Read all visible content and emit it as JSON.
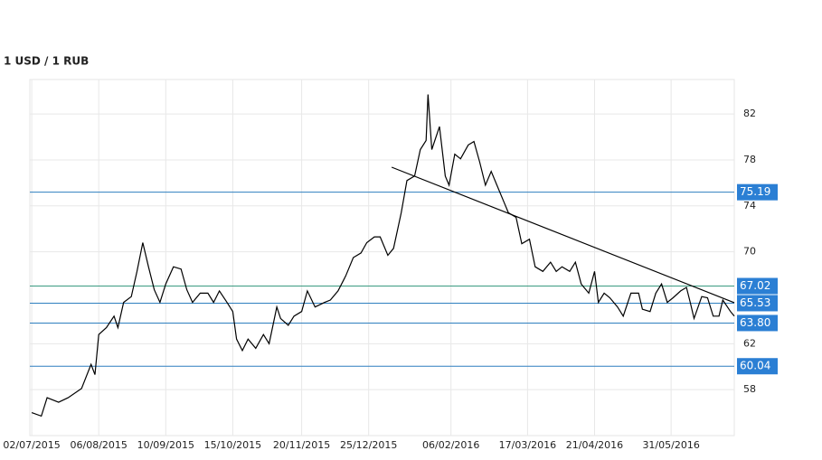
{
  "chart_data": {
    "type": "line",
    "title": "1 USD / 1 RUB",
    "x": [
      "02/07/2015",
      "07/07/2015",
      "10/07/2015",
      "16/07/2015",
      "21/07/2015",
      "28/07/2015",
      "02/08/2015",
      "04/08/2015",
      "06/08/2015",
      "10/08/2015",
      "14/08/2015",
      "16/08/2015",
      "19/08/2015",
      "23/08/2015",
      "26/08/2015",
      "29/08/2015",
      "01/09/2015",
      "04/09/2015",
      "07/09/2015",
      "10/09/2015",
      "14/09/2015",
      "18/09/2015",
      "21/09/2015",
      "24/09/2015",
      "28/09/2015",
      "02/10/2015",
      "05/10/2015",
      "08/10/2015",
      "12/10/2015",
      "15/10/2015",
      "17/10/2015",
      "20/10/2015",
      "23/10/2015",
      "27/10/2015",
      "31/10/2015",
      "03/11/2015",
      "07/11/2015",
      "09/11/2015",
      "13/11/2015",
      "16/11/2015",
      "20/11/2015",
      "23/11/2015",
      "27/11/2015",
      "02/12/2015",
      "05/12/2015",
      "09/12/2015",
      "13/12/2015",
      "17/12/2015",
      "21/12/2015",
      "24/12/2015",
      "28/12/2015",
      "31/12/2015",
      "04/01/2016",
      "07/01/2016",
      "11/01/2016",
      "14/01/2016",
      "18/01/2016",
      "21/01/2016",
      "24/01/2016",
      "25/01/2016",
      "27/01/2016",
      "31/01/2016",
      "03/02/2016",
      "05/02/2016",
      "08/02/2016",
      "11/02/2016",
      "15/02/2016",
      "18/02/2016",
      "21/02/2016",
      "24/02/2016",
      "27/02/2016",
      "01/03/2016",
      "05/03/2016",
      "07/03/2016",
      "11/03/2016",
      "14/03/2016",
      "18/03/2016",
      "21/03/2016",
      "25/03/2016",
      "29/03/2016",
      "01/04/2016",
      "04/04/2016",
      "08/04/2016",
      "11/04/2016",
      "14/04/2016",
      "18/04/2016",
      "21/04/2016",
      "23/04/2016",
      "26/04/2016",
      "29/04/2016",
      "03/05/2016",
      "06/05/2016",
      "10/05/2016",
      "14/05/2016",
      "16/05/2016",
      "20/05/2016",
      "23/05/2016",
      "26/05/2016",
      "29/05/2016",
      "01/06/2016",
      "05/06/2016",
      "08/06/2016",
      "10/06/2016",
      "12/06/2016",
      "16/06/2016",
      "19/06/2016",
      "22/06/2016",
      "25/06/2016",
      "27/06/2016",
      "01/07/2016",
      "03/07/2016"
    ],
    "values": [
      56.0,
      55.7,
      57.3,
      56.9,
      57.3,
      58.1,
      60.2,
      59.3,
      62.8,
      63.4,
      64.4,
      63.4,
      65.6,
      66.1,
      68.3,
      70.8,
      68.7,
      66.7,
      65.6,
      67.2,
      68.7,
      68.5,
      66.7,
      65.6,
      66.4,
      66.4,
      65.6,
      66.6,
      65.6,
      64.8,
      62.4,
      61.4,
      62.4,
      61.6,
      62.8,
      62.0,
      65.2,
      64.2,
      63.6,
      64.4,
      64.8,
      66.6,
      65.2,
      65.6,
      65.8,
      66.6,
      67.9,
      69.5,
      69.9,
      70.8,
      71.3,
      71.3,
      69.7,
      70.3,
      73.4,
      76.2,
      76.6,
      78.9,
      79.7,
      83.7,
      78.9,
      80.9,
      76.6,
      75.8,
      78.5,
      78.1,
      79.3,
      79.6,
      77.8,
      75.8,
      77.0,
      75.8,
      74.2,
      73.4,
      73.0,
      70.7,
      71.1,
      68.7,
      68.3,
      69.1,
      68.3,
      68.7,
      68.3,
      69.1,
      67.2,
      66.4,
      68.3,
      65.6,
      66.4,
      66.0,
      65.2,
      64.4,
      66.4,
      66.4,
      65.0,
      64.8,
      66.4,
      67.2,
      65.6,
      66.0,
      66.6,
      66.9,
      65.6,
      64.2,
      66.1,
      66.0,
      64.4,
      64.4,
      65.8,
      64.8,
      64.4
    ],
    "color": "#000000",
    "trendline": {
      "x": [
        "06/01/2016",
        "03/07/2016"
      ],
      "values": [
        77.37,
        65.57
      ],
      "color": "#000000"
    },
    "levels": [
      75.19,
      67.02,
      65.53,
      {
        "value": 63.8,
        "label": "63.80"
      },
      60.04
    ],
    "level_colors": [
      "#2f7fbf",
      "#3a9a80",
      "#2f7fbf",
      "#2f7fbf",
      "#2f7fbf"
    ],
    "level_label_color": "#2b7fd4",
    "xlim": [
      "01/07/2015",
      "03/07/2016"
    ],
    "xticks": [
      "02/07/2015",
      "06/08/2015",
      "10/09/2015",
      "15/10/2015",
      "20/11/2015",
      "25/12/2015",
      "06/02/2016",
      "17/03/2016",
      "21/04/2016",
      "31/05/2016"
    ],
    "ylim": [
      54,
      85
    ],
    "yticks": [
      58,
      62,
      70,
      74,
      78,
      82
    ],
    "grid": true
  }
}
